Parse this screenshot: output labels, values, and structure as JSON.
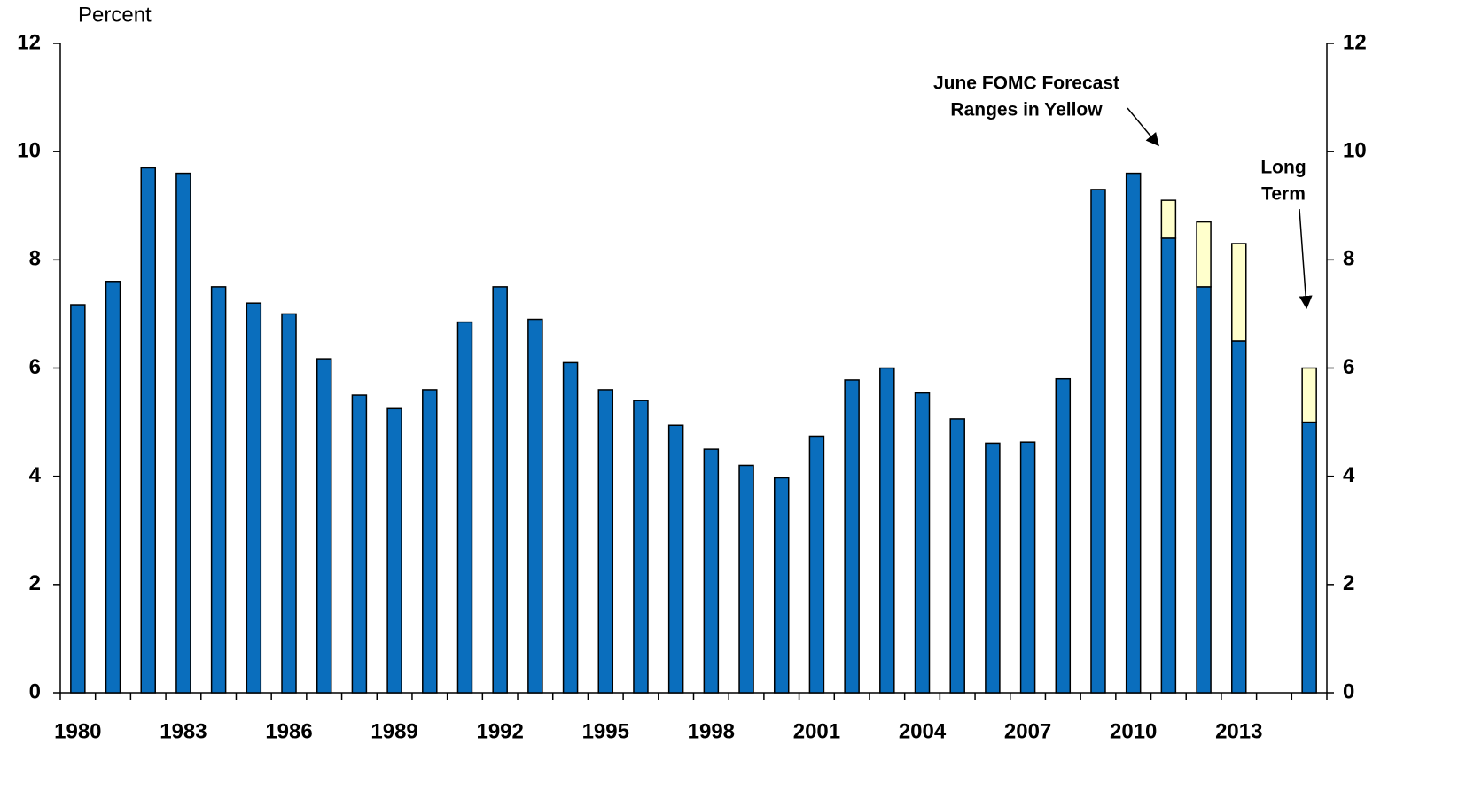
{
  "chart_data": {
    "type": "stacked_bar",
    "y_label": "Percent",
    "categories": [
      "1980",
      null,
      null,
      "1983",
      null,
      null,
      "1986",
      null,
      null,
      "1989",
      null,
      null,
      "1992",
      null,
      null,
      "1995",
      null,
      null,
      "1998",
      null,
      null,
      "2001",
      null,
      null,
      "2004",
      null,
      null,
      "2007",
      null,
      null,
      "2010",
      null,
      null,
      "2013",
      null,
      null
    ],
    "series": [
      {
        "color": "#0a6ebd",
        "values": [
          7.17,
          7.6,
          9.7,
          9.6,
          7.5,
          7.2,
          7.0,
          6.17,
          5.5,
          5.25,
          5.6,
          6.85,
          7.5,
          6.9,
          6.1,
          5.6,
          5.4,
          4.94,
          4.5,
          4.2,
          3.97,
          4.74,
          5.78,
          6.0,
          5.54,
          5.06,
          4.61,
          4.63,
          5.8,
          9.3,
          9.6,
          8.4,
          7.5,
          6.5,
          null,
          5.0
        ]
      },
      {
        "color": "#ffffcc",
        "values": [
          null,
          null,
          null,
          null,
          null,
          null,
          null,
          null,
          null,
          null,
          null,
          null,
          null,
          null,
          null,
          null,
          null,
          null,
          null,
          null,
          null,
          null,
          null,
          null,
          null,
          null,
          null,
          null,
          null,
          null,
          null,
          0.7,
          1.2,
          1.8,
          null,
          1.0
        ]
      }
    ],
    "ylim": [
      0,
      12
    ],
    "yticks": [
      0,
      2,
      4,
      6,
      8,
      10,
      12
    ],
    "y2lim": [
      0,
      12
    ],
    "y2ticks": [
      0,
      2,
      4,
      6,
      8,
      10,
      12
    ],
    "annotations": [
      {
        "text": [
          "June FOMC Forecast",
          "Ranges in Yellow"
        ]
      },
      {
        "text": [
          "Long",
          "Term"
        ]
      }
    ]
  }
}
